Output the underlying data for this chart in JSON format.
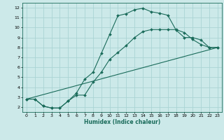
{
  "title": "",
  "xlabel": "Humidex (Indice chaleur)",
  "bg_color": "#cce9e9",
  "grid_color": "#aad4d4",
  "line_color": "#1a6b5a",
  "xlim": [
    -0.5,
    23.5
  ],
  "ylim": [
    1.5,
    12.5
  ],
  "xticks": [
    0,
    1,
    2,
    3,
    4,
    5,
    6,
    7,
    8,
    9,
    10,
    11,
    12,
    13,
    14,
    15,
    16,
    17,
    18,
    19,
    20,
    21,
    22,
    23
  ],
  "yticks": [
    2,
    3,
    4,
    5,
    6,
    7,
    8,
    9,
    10,
    11,
    12
  ],
  "line1_x": [
    0,
    1,
    2,
    3,
    4,
    5,
    6,
    7,
    8,
    9,
    10,
    11,
    12,
    13,
    14,
    15,
    16,
    17,
    18,
    19,
    20,
    21,
    22,
    23
  ],
  "line1_y": [
    2.8,
    2.8,
    2.1,
    1.9,
    1.9,
    2.6,
    3.4,
    4.8,
    5.5,
    7.4,
    9.3,
    11.2,
    11.4,
    11.8,
    11.95,
    11.6,
    11.45,
    11.25,
    9.75,
    9.0,
    9.0,
    8.75,
    8.0,
    8.0
  ],
  "line2_x": [
    0,
    1,
    2,
    3,
    4,
    5,
    6,
    7,
    8,
    9,
    10,
    11,
    12,
    13,
    14,
    15,
    16,
    17,
    18,
    19,
    20,
    21,
    22,
    23
  ],
  "line2_y": [
    2.8,
    2.8,
    2.1,
    1.9,
    1.9,
    2.6,
    3.2,
    3.2,
    4.5,
    5.5,
    6.8,
    7.5,
    8.2,
    9.0,
    9.6,
    9.8,
    9.8,
    9.8,
    9.8,
    9.5,
    8.8,
    8.3,
    8.0,
    8.0
  ],
  "line3_x": [
    0,
    23
  ],
  "line3_y": [
    2.8,
    8.0
  ]
}
